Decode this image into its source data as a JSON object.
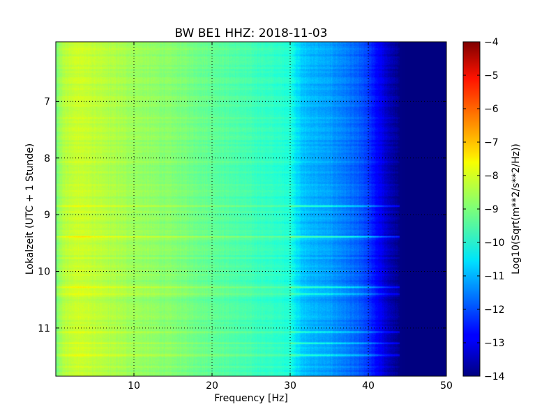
{
  "chart_data": {
    "type": "heatmap",
    "title": "BW BE1 HHZ: 2018-11-03",
    "xlabel": "Frequency [Hz]",
    "ylabel": "Lokalzeit (UTC + 1 Stunde)",
    "colorbar_label": "Log10(Sqrt(m**2/s**2/Hz))",
    "colormap": "jet",
    "grid": true,
    "xlim": [
      0,
      50
    ],
    "ylim": [
      5.95,
      11.85
    ],
    "y_inverted": true,
    "clim": [
      -14,
      -4
    ],
    "x_ticks": [
      10,
      20,
      30,
      40,
      50
    ],
    "x_tick_labels": [
      "10",
      "20",
      "30",
      "40",
      "50"
    ],
    "y_ticks": [
      7,
      8,
      9,
      10,
      11
    ],
    "y_tick_labels": [
      "7",
      "8",
      "9",
      "10",
      "11"
    ],
    "colorbar_ticks": [
      -4,
      -5,
      -6,
      -7,
      -8,
      -9,
      -10,
      -11,
      -12,
      -13,
      -14
    ],
    "colorbar_tick_labels": [
      "−4",
      "−5",
      "−6",
      "−7",
      "−8",
      "−9",
      "−10",
      "−11",
      "−12",
      "−13",
      "−14"
    ],
    "spectral_profile": {
      "frequency_hz": [
        0,
        1,
        3,
        5,
        10,
        15,
        20,
        25,
        30,
        31.5,
        33,
        35,
        37,
        39,
        40,
        41,
        42,
        43,
        44,
        45,
        50
      ],
      "log10_amplitude": [
        -9.0,
        -8.3,
        -8.0,
        -8.2,
        -8.6,
        -8.9,
        -9.3,
        -9.7,
        -10.1,
        -10.8,
        -11.0,
        -11.2,
        -11.5,
        -11.9,
        -12.2,
        -12.7,
        -13.2,
        -13.6,
        -13.95,
        -14.0,
        -14.0
      ]
    },
    "noise_bands": [
      {
        "time_h": 8.85,
        "delta_log10": 1.2,
        "extends_to_hz": 46
      },
      {
        "time_h": 9.39,
        "delta_log10": 1.6,
        "extends_to_hz": 45
      },
      {
        "time_h": 10.28,
        "delta_log10": 1.2,
        "extends_to_hz": 45
      },
      {
        "time_h": 10.4,
        "delta_log10": 1.0,
        "extends_to_hz": 45
      },
      {
        "time_h": 11.07,
        "delta_log10": 1.0,
        "extends_to_hz": 45
      },
      {
        "time_h": 11.27,
        "delta_log10": 1.3,
        "extends_to_hz": 46
      },
      {
        "time_h": 11.48,
        "delta_log10": 1.0,
        "extends_to_hz": 45
      }
    ]
  }
}
